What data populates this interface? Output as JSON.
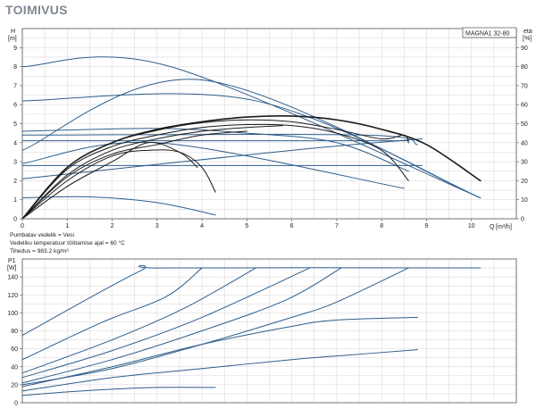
{
  "title": "TOIMIVUS",
  "notes": [
    "Pumbatav vedelik = Vesi",
    "Vedeliku temperatuur töötamise ajal = 60 °C",
    "Tihedus = 983.2 kg/m³"
  ],
  "colors": {
    "blue": "#2d5d8c",
    "black": "#1a1a1a",
    "grid": "#d4d4d4",
    "axis": "#555555"
  },
  "chart_data": [
    {
      "type": "line",
      "model": "MAGNA1 32-80",
      "ylabel": "H",
      "yunit": "[m]",
      "y2label": "eta",
      "y2unit": "[%]",
      "xlabel": "Q",
      "xunit": "[m³/h]",
      "xlim": [
        0,
        11
      ],
      "ylim": [
        0,
        10
      ],
      "y2lim": [
        0,
        100
      ],
      "xticks": [
        0,
        1,
        2,
        3,
        4,
        5,
        6,
        7,
        8,
        9,
        10
      ],
      "yticks": [
        0,
        1,
        2,
        3,
        4,
        5,
        6,
        7,
        8,
        9
      ],
      "y2ticks": [
        0,
        10,
        20,
        30,
        40,
        50,
        60,
        70,
        80,
        90
      ],
      "grid": true,
      "series": [
        {
          "kind": "head",
          "color": "blue",
          "points": [
            [
              0,
              8.0
            ],
            [
              3.3,
              8.0
            ],
            [
              10.2,
              1.1
            ]
          ]
        },
        {
          "kind": "head",
          "color": "blue",
          "points": [
            [
              0,
              6.2
            ],
            [
              5.2,
              6.2
            ],
            [
              10.2,
              1.1
            ]
          ]
        },
        {
          "kind": "head",
          "color": "blue",
          "points": [
            [
              0,
              4.4
            ],
            [
              7.6,
              4.4
            ],
            [
              8.8,
              3.9
            ]
          ]
        },
        {
          "kind": "head",
          "color": "blue",
          "points": [
            [
              0,
              4.1
            ],
            [
              8.6,
              4.1
            ]
          ]
        },
        {
          "kind": "head",
          "color": "blue",
          "points": [
            [
              0,
              2.8
            ],
            [
              8.9,
              2.8
            ]
          ]
        },
        {
          "kind": "head",
          "color": "blue",
          "points": [
            [
              0,
              3.6
            ],
            [
              4.0,
              7.3
            ],
            [
              10.2,
              1.1
            ]
          ]
        },
        {
          "kind": "head",
          "color": "blue",
          "points": [
            [
              0,
              2.9
            ],
            [
              3.0,
              4.0
            ],
            [
              8.5,
              1.6
            ]
          ]
        },
        {
          "kind": "head",
          "color": "blue",
          "points": [
            [
              0,
              2.1
            ],
            [
              6.0,
              3.6
            ],
            [
              8.9,
              4.2
            ]
          ]
        },
        {
          "kind": "head",
          "color": "blue",
          "points": [
            [
              0,
              1.1
            ],
            [
              1.5,
              1.15
            ],
            [
              3.0,
              0.85
            ],
            [
              4.3,
              0.2
            ]
          ]
        },
        {
          "kind": "head",
          "color": "blue",
          "points": [
            [
              0,
              4.6
            ],
            [
              3.0,
              4.75
            ],
            [
              5.0,
              4.5
            ],
            [
              7.0,
              4.0
            ],
            [
              8.6,
              2.5
            ]
          ]
        },
        {
          "kind": "eta",
          "color": "black",
          "points": [
            [
              0,
              0
            ],
            [
              1.0,
              27
            ],
            [
              2.0,
              40
            ],
            [
              3.0,
              47
            ],
            [
              4.0,
              51
            ],
            [
              5.0,
              53.5
            ],
            [
              6.0,
              54
            ],
            [
              7.0,
              52
            ],
            [
              8.0,
              47
            ],
            [
              9.0,
              39
            ],
            [
              10.2,
              20
            ]
          ]
        },
        {
          "kind": "eta",
          "color": "black",
          "points": [
            [
              0,
              0
            ],
            [
              1.0,
              27
            ],
            [
              2.0,
              40
            ],
            [
              3.0,
              46.5
            ],
            [
              4.0,
              50.5
            ],
            [
              5.0,
              52
            ],
            [
              6.0,
              51
            ],
            [
              7.0,
              47
            ],
            [
              8.0,
              42
            ],
            [
              8.5,
              44
            ],
            [
              8.6,
              40
            ]
          ]
        },
        {
          "kind": "eta",
          "color": "black",
          "points": [
            [
              0,
              0
            ],
            [
              1.0,
              26
            ],
            [
              2.0,
              38
            ],
            [
              3.0,
              44
            ],
            [
              4.0,
              48
            ],
            [
              5.0,
              49.5
            ],
            [
              6.0,
              49
            ],
            [
              7.0,
              45
            ],
            [
              8.0,
              36
            ],
            [
              8.6,
              20
            ]
          ]
        },
        {
          "kind": "eta",
          "color": "black",
          "points": [
            [
              0,
              0
            ],
            [
              1.0,
              23
            ],
            [
              2.0,
              36
            ],
            [
              3.0,
              42
            ],
            [
              4.0,
              46
            ],
            [
              5.0,
              48
            ],
            [
              5.8,
              49
            ]
          ]
        },
        {
          "kind": "eta",
          "color": "black",
          "points": [
            [
              0,
              0
            ],
            [
              1.0,
              22
            ],
            [
              2.0,
              34
            ],
            [
              3.0,
              39
            ],
            [
              4.0,
              44
            ],
            [
              5.0,
              46
            ]
          ]
        },
        {
          "kind": "eta",
          "color": "black",
          "points": [
            [
              0,
              0
            ],
            [
              1.0,
              20
            ],
            [
              2.0,
              33
            ],
            [
              2.8,
              36
            ],
            [
              3.5,
              35
            ],
            [
              4.0,
              27
            ],
            [
              4.3,
              14
            ]
          ]
        },
        {
          "kind": "eta",
          "color": "black",
          "points": [
            [
              0,
              0
            ],
            [
              1.0,
              17
            ],
            [
              2.0,
              30
            ],
            [
              2.8,
              40
            ],
            [
              3.5,
              35
            ],
            [
              3.9,
              27
            ]
          ]
        }
      ]
    },
    {
      "type": "line",
      "ylabel": "P1",
      "yunit": "[W]",
      "xlim": [
        0,
        11
      ],
      "ylim": [
        0,
        160
      ],
      "yticks": [
        0,
        20,
        40,
        60,
        80,
        100,
        120,
        140
      ],
      "grid": true,
      "series": [
        {
          "color": "blue",
          "points": [
            [
              0,
              75
            ],
            [
              2.6,
              146
            ],
            [
              3.2,
              150
            ],
            [
              10.2,
              150
            ]
          ]
        },
        {
          "color": "blue",
          "points": [
            [
              0,
              48
            ],
            [
              1.8,
              90
            ],
            [
              3.2,
              118
            ],
            [
              4.0,
              150
            ]
          ]
        },
        {
          "color": "blue",
          "points": [
            [
              0,
              33
            ],
            [
              2.0,
              70
            ],
            [
              3.6,
              105
            ],
            [
              5.2,
              150
            ]
          ]
        },
        {
          "color": "blue",
          "points": [
            [
              0,
              28
            ],
            [
              2.0,
              58
            ],
            [
              4.0,
              95
            ],
            [
              6.4,
              150
            ]
          ]
        },
        {
          "color": "blue",
          "points": [
            [
              0,
              22
            ],
            [
              2.0,
              48
            ],
            [
              4.0,
              80
            ],
            [
              5.9,
              115
            ],
            [
              7.1,
              150
            ]
          ]
        },
        {
          "color": "blue",
          "points": [
            [
              0,
              20
            ],
            [
              2.0,
              38
            ],
            [
              4.0,
              65
            ],
            [
              6.0,
              95
            ],
            [
              7.0,
              112
            ],
            [
              8.6,
              150
            ]
          ]
        },
        {
          "color": "blue",
          "points": [
            [
              0,
              18
            ],
            [
              2.0,
              40
            ],
            [
              4.0,
              65
            ],
            [
              6.0,
              85
            ],
            [
              7.0,
              92
            ],
            [
              8.8,
              95
            ]
          ]
        },
        {
          "color": "blue",
          "points": [
            [
              0,
              13
            ],
            [
              2.0,
              28
            ],
            [
              4.0,
              38
            ],
            [
              6.0,
              48
            ],
            [
              7.0,
              52
            ],
            [
              8.8,
              59
            ]
          ]
        },
        {
          "color": "blue",
          "points": [
            [
              0,
              8
            ],
            [
              1.0,
              12
            ],
            [
              2.0,
              15
            ],
            [
              3.0,
              17
            ],
            [
              4.3,
              17
            ]
          ]
        }
      ]
    }
  ]
}
